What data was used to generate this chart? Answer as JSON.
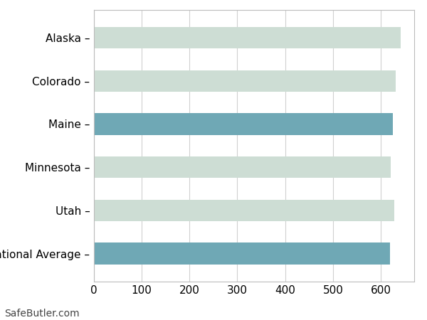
{
  "categories": [
    "National Average",
    "Utah",
    "Minnesota",
    "Maine",
    "Colorado",
    "Alaska"
  ],
  "values": [
    619,
    629,
    621,
    625,
    631,
    641
  ],
  "bar_colors": [
    "#6fa8b5",
    "#cdddd4",
    "#cdddd4",
    "#6fa8b5",
    "#cdddd4",
    "#cdddd4"
  ],
  "xlim": [
    0,
    670
  ],
  "xticks": [
    0,
    100,
    200,
    300,
    400,
    500,
    600
  ],
  "background_color": "#ffffff",
  "grid_color": "#d0d0d0",
  "bar_height": 0.5,
  "footer_text": "SafeButler.com",
  "footer_fontsize": 10,
  "tick_fontsize": 11,
  "label_fontsize": 11,
  "border_color": "#bbbbbb",
  "label_suffix": " –"
}
